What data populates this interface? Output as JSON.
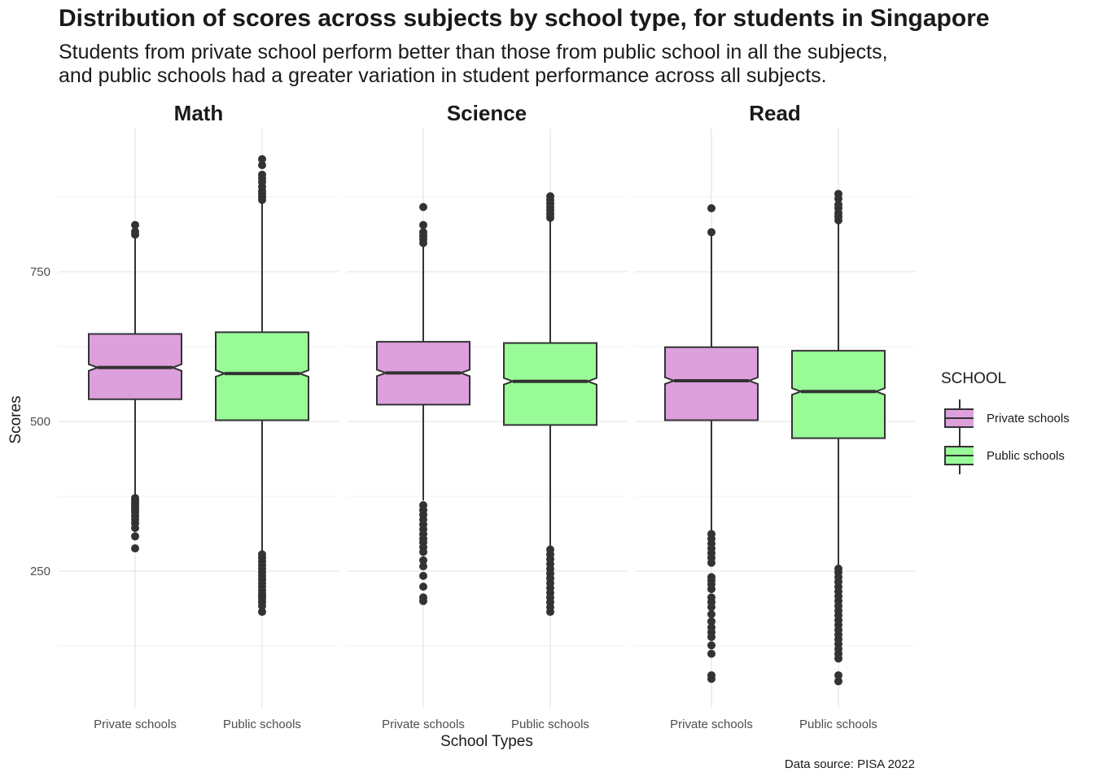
{
  "title": "Distribution of scores across subjects by school type, for students in Singapore",
  "subtitle_lines": [
    "Students from private school perform better than those from public school in all the subjects,",
    "and public schools had a greater variation in student performance across all subjects."
  ],
  "caption": "Data source: PISA 2022",
  "colors": {
    "private": "#DDA0DD",
    "public": "#98FB98",
    "outline": "#333333",
    "grid": "#ebebeb"
  },
  "chart_data": {
    "type": "boxplot",
    "notched": true,
    "xlabel": "School Types",
    "ylabel": "Scores",
    "ylim": [
      35,
      960
    ],
    "y_ticks": [
      250,
      500,
      750
    ],
    "y_minor_ticks": [
      125,
      375,
      625,
      875
    ],
    "grid": true,
    "legend": {
      "title": "SCHOOL",
      "position": "right",
      "entries": [
        "Private schools",
        "Public schools"
      ]
    },
    "facets": [
      {
        "name": "Math",
        "groups": [
          {
            "category": "Private schools",
            "q1": 537,
            "median": 590,
            "q3": 646,
            "whisker_low": 374,
            "whisker_high": 810,
            "outliers": [
              288,
              308,
              322,
              330,
              336,
              342,
              348,
              352,
              356,
              360,
              364,
              368,
              372,
              812,
              817,
              828
            ]
          },
          {
            "category": "Public schools",
            "q1": 502,
            "median": 580,
            "q3": 649,
            "whisker_low": 283,
            "whisker_high": 868,
            "outliers": [
              182,
              192,
              198,
              204,
              208,
              212,
              218,
              224,
              230,
              236,
              242,
              248,
              254,
              260,
              266,
              272,
              278,
              870,
              875,
              880,
              885,
              892,
              900,
              906,
              912,
              928,
              938
            ]
          }
        ]
      },
      {
        "name": "Science",
        "groups": [
          {
            "category": "Private schools",
            "q1": 528,
            "median": 581,
            "q3": 633,
            "whisker_low": 368,
            "whisker_high": 796,
            "outliers": [
              200,
              206,
              224,
              242,
              258,
              268,
              282,
              290,
              298,
              304,
              312,
              320,
              328,
              336,
              344,
              352,
              360,
              798,
              804,
              810,
              816,
              828,
              858
            ]
          },
          {
            "category": "Public schools",
            "q1": 494,
            "median": 567,
            "q3": 631,
            "whisker_low": 292,
            "whisker_high": 838,
            "outliers": [
              182,
              190,
              198,
              206,
              214,
              222,
              230,
              238,
              246,
              254,
              262,
              270,
              278,
              286,
              840,
              846,
              852,
              858,
              864,
              870,
              876
            ]
          }
        ]
      },
      {
        "name": "Read",
        "groups": [
          {
            "category": "Private schools",
            "q1": 502,
            "median": 568,
            "q3": 624,
            "whisker_low": 318,
            "whisker_high": 814,
            "outliers": [
              70,
              76,
              112,
              126,
              140,
              148,
              156,
              166,
              178,
              190,
              198,
              206,
              220,
              228,
              234,
              240,
              264,
              272,
              280,
              288,
              296,
              304,
              312,
              816,
              856
            ]
          },
          {
            "category": "Public schools",
            "q1": 472,
            "median": 550,
            "q3": 618,
            "whisker_low": 257,
            "whisker_high": 832,
            "outliers": [
              66,
              76,
              104,
              112,
              120,
              128,
              136,
              144,
              152,
              160,
              168,
              176,
              184,
              192,
              200,
              208,
              216,
              224,
              232,
              240,
              248,
              254,
              836,
              842,
              848,
              856,
              862,
              872,
              880
            ]
          }
        ]
      }
    ]
  }
}
